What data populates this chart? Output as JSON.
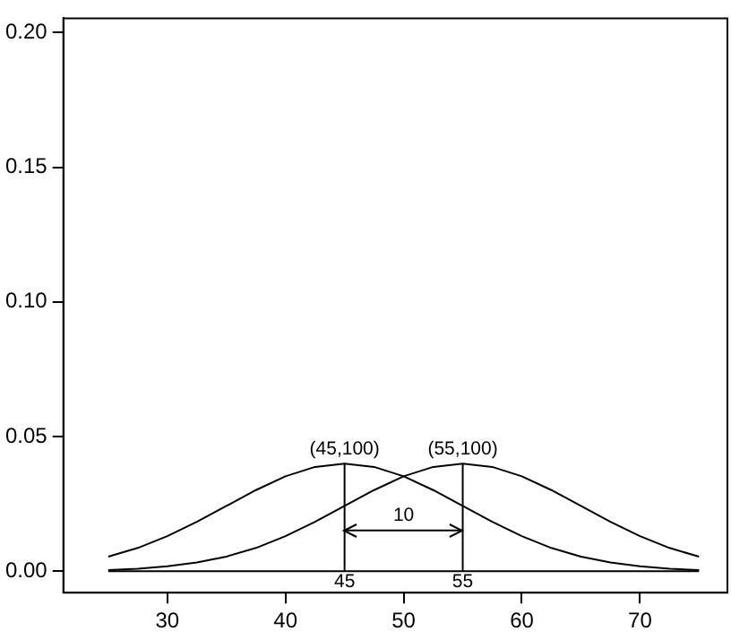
{
  "chart_data": {
    "type": "line",
    "marker": "none",
    "line_style": "solid",
    "legend": false,
    "xlim": [
      21.2,
      77.4
    ],
    "xticks": [
      30,
      40,
      50,
      60,
      70
    ],
    "ylim": [
      -0.008,
      0.2053
    ],
    "yticks": [
      {
        "value": 0,
        "label": "0.00"
      },
      {
        "value": 0.05,
        "label": "0.05"
      },
      {
        "value": 0.1,
        "label": "0.10"
      },
      {
        "value": 0.15,
        "label": "0.15"
      },
      {
        "value": 0.2,
        "label": "0.20"
      }
    ],
    "series": [
      {
        "color": "#000000",
        "x": [
          25,
          27.5,
          30,
          32.5,
          35,
          37.5,
          40,
          42.5,
          45,
          47.5,
          50,
          52.5,
          55,
          57.5,
          60,
          62.5,
          65,
          67.5,
          70,
          72.5,
          75
        ],
        "values": [
          0.0054,
          0.0086,
          0.013,
          0.0183,
          0.0242,
          0.0301,
          0.0352,
          0.0387,
          0.0399,
          0.0387,
          0.0352,
          0.0301,
          0.0242,
          0.0183,
          0.013,
          0.0086,
          0.0054,
          0.0032,
          0.0018,
          0.0009,
          0.0004
        ]
      },
      {
        "color": "#000000",
        "x": [
          25,
          27.5,
          30,
          32.5,
          35,
          37.5,
          40,
          42.5,
          45,
          47.5,
          50,
          52.5,
          55,
          57.5,
          60,
          62.5,
          65,
          67.5,
          70,
          72.5,
          75
        ],
        "values": [
          0.0004,
          0.0009,
          0.0018,
          0.0032,
          0.0054,
          0.0086,
          0.013,
          0.0183,
          0.0242,
          0.0301,
          0.0352,
          0.0387,
          0.0399,
          0.0387,
          0.0352,
          0.0301,
          0.0242,
          0.0183,
          0.013,
          0.0086,
          0.0054
        ]
      },
      {
        "color": "#000000",
        "x": [
          25,
          75
        ],
        "values": [
          0,
          0
        ]
      },
      {
        "color": "#000000",
        "x": [
          45,
          45
        ],
        "values": [
          0,
          0.0399
        ]
      },
      {
        "color": "#000000",
        "x": [
          55,
          55
        ],
        "values": [
          0,
          0.0399
        ]
      },
      {
        "color": "#000000",
        "x": [
          45,
          55
        ],
        "values": [
          0.0151,
          0.0151
        ]
      }
    ],
    "annotations": [
      {
        "text": "(45,100)",
        "x": 45,
        "y": 0.0399
      },
      {
        "text": "(55,100)",
        "x": 55,
        "y": 0.0399
      },
      {
        "text": "10",
        "x": 50,
        "y": 0.0151
      },
      {
        "text": "45",
        "x": 45,
        "y": 0
      },
      {
        "text": "55",
        "x": 55,
        "y": 0
      }
    ]
  }
}
